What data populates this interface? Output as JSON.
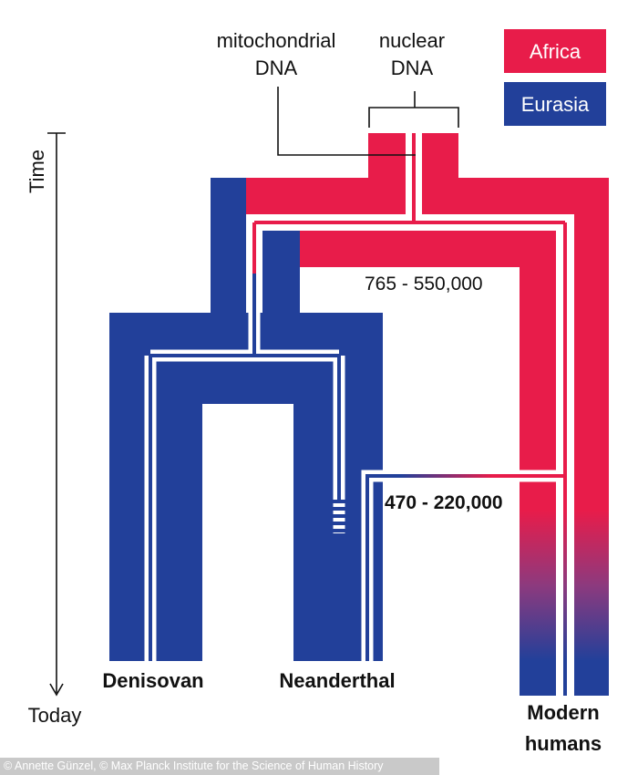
{
  "labels": {
    "mito_line1": "mitochondrial",
    "mito_line2": "DNA",
    "nuclear_line1": "nuclear",
    "nuclear_line2": "DNA",
    "split_1": "765 - 550,000",
    "split_2": "470 - 220,000",
    "denisovan": "Denisovan",
    "neanderthal": "Neanderthal",
    "modern_line1": "Modern",
    "modern_line2": "humans"
  },
  "legend": [
    {
      "label": "Africa",
      "color": "#E81C4A"
    },
    {
      "label": "Eurasia",
      "color": "#22409A"
    }
  ],
  "axis": {
    "top": "Time",
    "bottom": "Today"
  },
  "credit": "© Annette Günzel, © Max Planck Institute for the Science of Human History"
}
